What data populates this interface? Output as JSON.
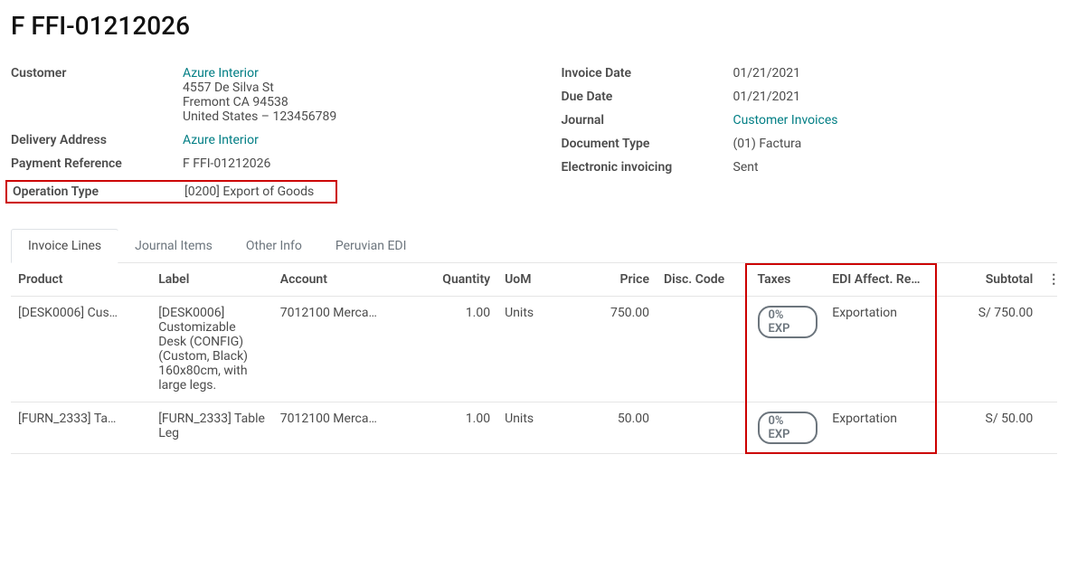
{
  "page_title": "F FFI-01212026",
  "left": {
    "customer_label": "Customer",
    "customer_name": "Azure Interior",
    "customer_addr1": "4557 De Silva St",
    "customer_addr2": "Fremont CA 94538",
    "customer_addr3": "United States – 123456789",
    "delivery_label": "Delivery Address",
    "delivery_value": "Azure Interior",
    "payref_label": "Payment Reference",
    "payref_value": "F FFI-01212026",
    "optype_label": "Operation Type",
    "optype_value": "[0200] Export of Goods"
  },
  "right": {
    "invdate_label": "Invoice Date",
    "invdate_value": "01/21/2021",
    "duedate_label": "Due Date",
    "duedate_value": "01/21/2021",
    "journal_label": "Journal",
    "journal_value": "Customer Invoices",
    "doctype_label": "Document Type",
    "doctype_value": "(01) Factura",
    "einv_label": "Electronic invoicing",
    "einv_value": "Sent"
  },
  "tabs": {
    "invoice_lines": "Invoice Lines",
    "journal_items": "Journal Items",
    "other_info": "Other Info",
    "peruvian_edi": "Peruvian EDI"
  },
  "columns": {
    "product": "Product",
    "label": "Label",
    "account": "Account",
    "quantity": "Quantity",
    "uom": "UoM",
    "price": "Price",
    "disc": "Disc. Code",
    "taxes": "Taxes",
    "edi": "EDI Affect. Re…",
    "subtotal": "Subtotal"
  },
  "rows": [
    {
      "product": "[DESK0006] Cus…",
      "label": "[DESK0006] Customizable Desk (CONFIG) (Custom, Black) 160x80cm, with large legs.",
      "account": "7012100 Merca…",
      "qty": "1.00",
      "uom": "Units",
      "price": "750.00",
      "disc": "",
      "tax": "0% EXP",
      "edi": "Exportation",
      "subtotal": "S/ 750.00"
    },
    {
      "product": "[FURN_2333] Ta…",
      "label": "[FURN_2333] Table Leg",
      "account": "7012100 Merca…",
      "qty": "1.00",
      "uom": "Units",
      "price": "50.00",
      "disc": "",
      "tax": "0% EXP",
      "edi": "Exportation",
      "subtotal": "S/ 50.00"
    }
  ],
  "colors": {
    "link": "#017e84",
    "highlight_border": "#cc0000",
    "badge_border": "#6c757d"
  }
}
